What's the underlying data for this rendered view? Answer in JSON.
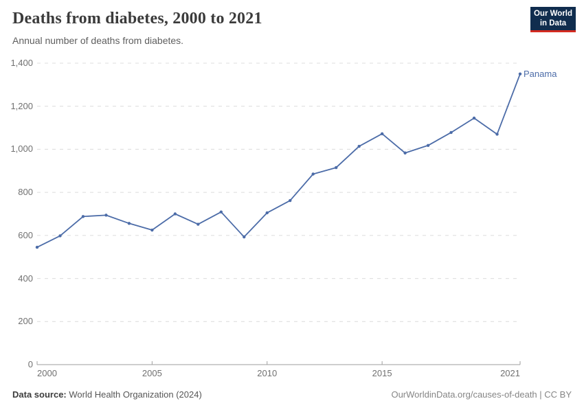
{
  "header": {
    "title": "Deaths from diabetes, 2000 to 2021",
    "subtitle": "Annual number of deaths from diabetes."
  },
  "logo": {
    "line1": "Our World",
    "line2": "in Data",
    "bg_color": "#102D4E",
    "accent_color": "#D42B21"
  },
  "footer": {
    "source_label": "Data source:",
    "source_text": "World Health Organization (2024)",
    "credit": "OurWorldinData.org/causes-of-death | CC BY"
  },
  "colors": {
    "line": "#4C6CA8",
    "gridline": "#dcdcdc",
    "axis": "#9e9e9e",
    "tick_label": "#707070",
    "title": "#3b3b3b"
  },
  "chart_data": {
    "type": "line",
    "title": "Deaths from diabetes, 2000 to 2021",
    "subtitle": "Annual number of deaths from diabetes.",
    "xlabel": "",
    "ylabel": "",
    "x": [
      2000,
      2001,
      2002,
      2003,
      2004,
      2005,
      2006,
      2007,
      2008,
      2009,
      2010,
      2011,
      2012,
      2013,
      2014,
      2015,
      2016,
      2017,
      2018,
      2019,
      2020,
      2021
    ],
    "series": [
      {
        "name": "Panama",
        "color": "#4C6CA8",
        "values": [
          545,
          598,
          688,
          694,
          656,
          625,
          700,
          652,
          709,
          593,
          705,
          762,
          885,
          915,
          1014,
          1072,
          983,
          1018,
          1078,
          1145,
          1070,
          1350
        ]
      }
    ],
    "xlim": [
      2000,
      2021
    ],
    "ylim": [
      0,
      1400
    ],
    "yticks": [
      {
        "value": 0,
        "label": "0"
      },
      {
        "value": 200,
        "label": "200"
      },
      {
        "value": 400,
        "label": "400"
      },
      {
        "value": 600,
        "label": "600"
      },
      {
        "value": 800,
        "label": "800"
      },
      {
        "value": 1000,
        "label": "1,000"
      },
      {
        "value": 1200,
        "label": "1,200"
      },
      {
        "value": 1400,
        "label": "1,400"
      }
    ],
    "xticks": [
      {
        "value": 2000,
        "label": "2000",
        "align": "left"
      },
      {
        "value": 2005,
        "label": "2005",
        "align": "center"
      },
      {
        "value": 2010,
        "label": "2010",
        "align": "center"
      },
      {
        "value": 2015,
        "label": "2015",
        "align": "center"
      },
      {
        "value": 2021,
        "label": "2021",
        "align": "right"
      }
    ],
    "grid": "horizontal-dashed",
    "legend": "end-of-line-label"
  }
}
